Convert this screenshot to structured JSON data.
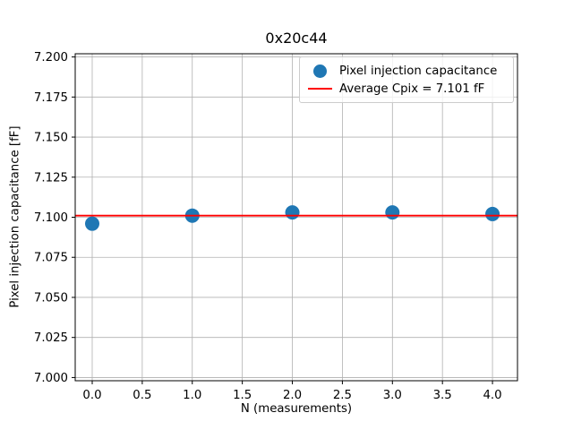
{
  "chart_data": {
    "type": "scatter",
    "title": "0x20c44",
    "xlabel": "N (measurements)",
    "ylabel": "Pixel injection capacitance [fF]",
    "series": [
      {
        "name": "Pixel injection capacitance",
        "x": [
          0,
          1,
          2,
          3,
          4
        ],
        "y": [
          7.096,
          7.101,
          7.103,
          7.103,
          7.102
        ]
      }
    ],
    "average_line": {
      "label": "Average Cpix = 7.101 fF",
      "value": 7.101
    },
    "legend": [
      "Pixel injection capacitance",
      "Average Cpix = 7.101 fF"
    ],
    "legend_position": "upper right",
    "xlim": [
      -0.17,
      4.25
    ],
    "ylim": [
      6.998,
      7.202
    ],
    "xticks": [
      "0.0",
      "0.5",
      "1.0",
      "1.5",
      "2.0",
      "2.5",
      "3.0",
      "3.5",
      "4.0"
    ],
    "yticks": [
      "7.000",
      "7.025",
      "7.050",
      "7.075",
      "7.100",
      "7.125",
      "7.150",
      "7.175",
      "7.200"
    ],
    "grid": true,
    "marker_radius_px": 8,
    "colors": {
      "marker": "#1f77b4",
      "average_line": "#ff0000",
      "grid": "#b0b0b0",
      "spine": "#000000",
      "background": "#ffffff",
      "text": "#000000"
    }
  }
}
